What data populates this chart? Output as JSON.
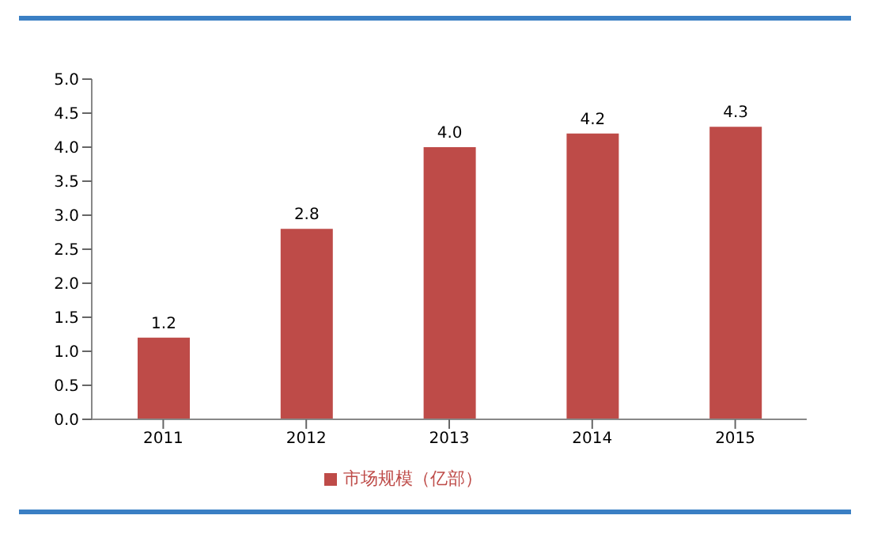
{
  "chart_data": {
    "type": "bar",
    "categories": [
      "2011",
      "2012",
      "2013",
      "2014",
      "2015"
    ],
    "series": [
      {
        "name": "市场规模（亿部）",
        "color": "#be4b48",
        "values": [
          1.2,
          2.8,
          4.0,
          4.2,
          4.3
        ],
        "value_labels": [
          "1.2",
          "2.8",
          "4.0",
          "4.2",
          "4.3"
        ]
      }
    ],
    "ylim": [
      0,
      5
    ],
    "yticks": [
      {
        "value": 0,
        "label": "0.0"
      },
      0.5,
      {
        "value": 1,
        "label": "1.0"
      },
      1.5,
      {
        "value": 2,
        "label": "2.0"
      },
      2.5,
      {
        "value": 3,
        "label": "3.0"
      },
      3.5,
      {
        "value": 4,
        "label": "4.0"
      },
      4.5,
      {
        "value": 5,
        "label": "5.0"
      }
    ],
    "legend": "bottom"
  }
}
